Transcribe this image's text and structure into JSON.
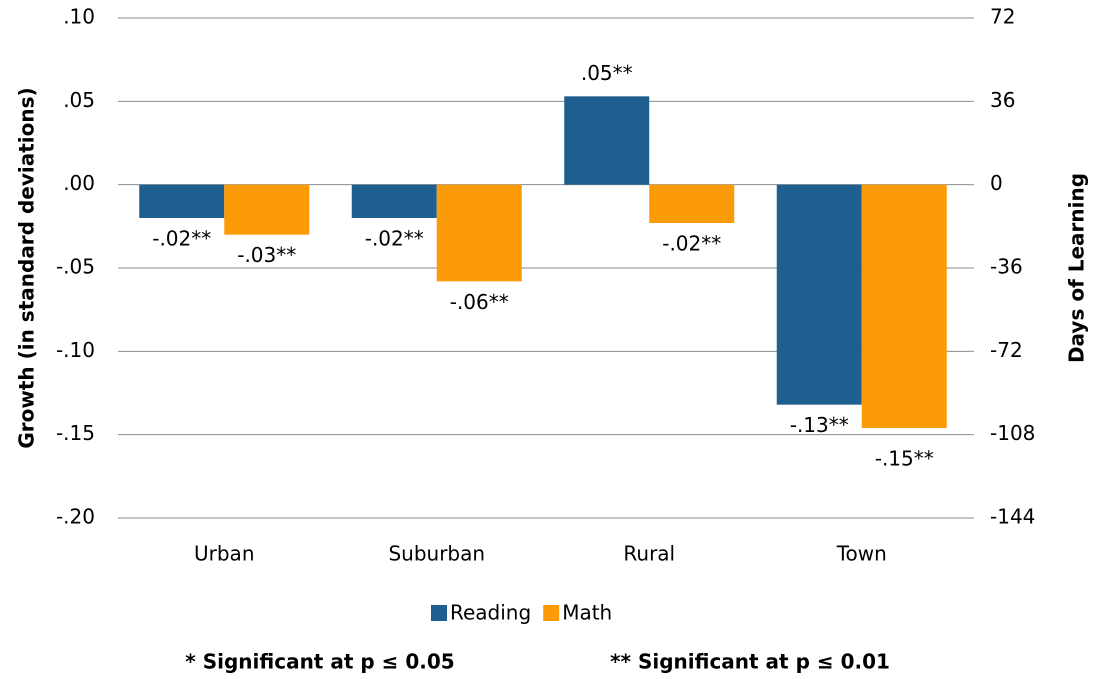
{
  "chart_data": {
    "type": "bar",
    "y_label": "Growth (in standard deviations)",
    "y2_label": "Days of Learning",
    "categories": [
      "Urban",
      "Suburban",
      "Rural",
      "Town"
    ],
    "series": [
      {
        "name": "Reading",
        "color": "#1f5f8f",
        "values": [
          -0.02,
          -0.02,
          0.053,
          -0.132
        ],
        "value_labels": [
          "-.02**",
          "-.02**",
          ".05**",
          "-.13**"
        ]
      },
      {
        "name": "Math",
        "color": "#fb9b08",
        "values": [
          -0.03,
          -0.058,
          -0.023,
          -0.146
        ],
        "value_labels": [
          "-.03**",
          "-.06**",
          "-.02**",
          "-.15**"
        ]
      }
    ],
    "ylim": [
      -0.2,
      0.1
    ],
    "yticks": [
      {
        "value": 0.1,
        "label": ".10"
      },
      {
        "value": 0.05,
        "label": ".05"
      },
      {
        "value": 0,
        "label": ".00"
      },
      {
        "value": -0.05,
        "label": "-.05"
      },
      {
        "value": -0.1,
        "label": "-.10"
      },
      {
        "value": -0.15,
        "label": "-.15"
      },
      {
        "value": -0.2,
        "label": "-.20"
      }
    ],
    "y2lim": [
      -144,
      72
    ],
    "y2ticks": [
      72,
      36,
      0,
      -36,
      -72,
      -108,
      -144
    ],
    "grid": true,
    "legend": "bottom",
    "notes": [
      "* Significant at p ≤ 0.05",
      "** Significant at p ≤ 0.01"
    ]
  }
}
